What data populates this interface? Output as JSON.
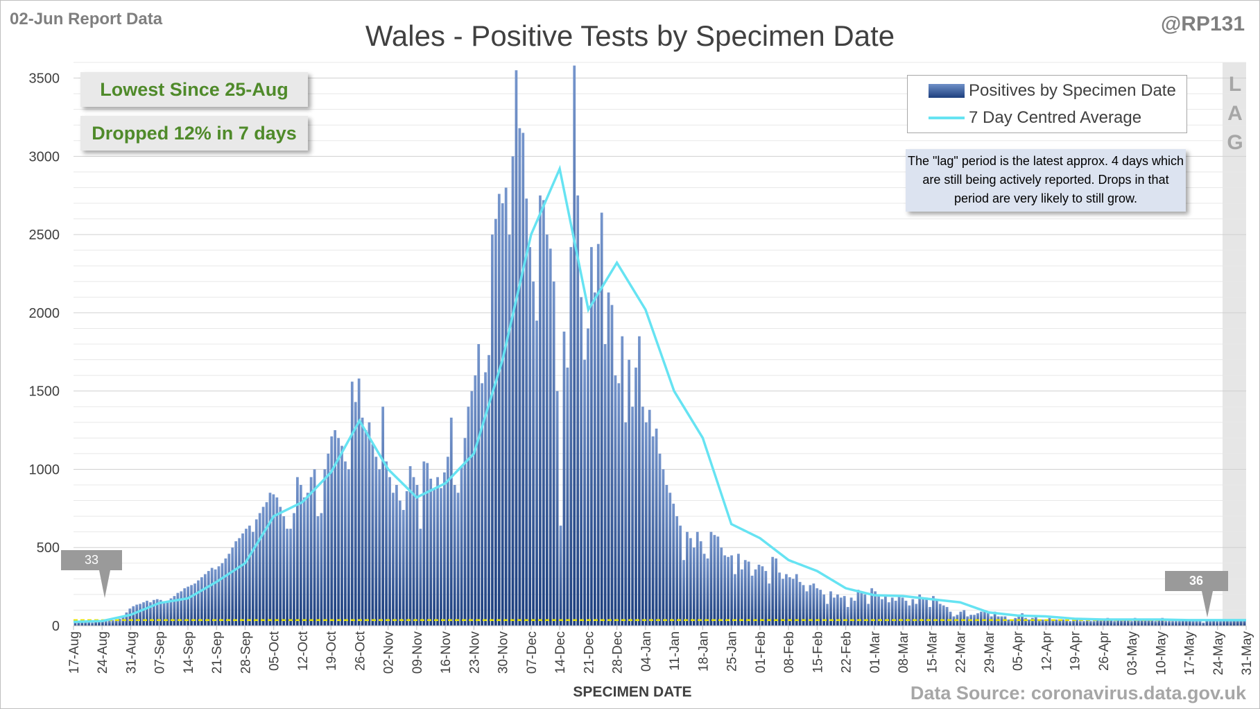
{
  "header": {
    "report_date": "02-Jun Report Data",
    "title": "Wales - Positive Tests by Specimen Date",
    "handle": "@RP131"
  },
  "callouts": {
    "lowest": "Lowest Since 25-Aug",
    "change": "Dropped 12% in 7 days"
  },
  "legend": {
    "bars": "Positives by Specimen Date",
    "line": "7 Day Centred Average"
  },
  "lag_note": "The \"lag\" period is the latest approx. 4 days which are still being actively reported. Drops in that period are very likely to still grow.",
  "lag_letters": [
    "L",
    "A",
    "G"
  ],
  "markers": {
    "first": "33",
    "last": "36"
  },
  "footer": {
    "source": "Data Source: coronavirus.data.gov.uk"
  },
  "colors": {
    "bar": "#2e5597",
    "average_line": "#66e3f2",
    "reference_line": "#e8e400",
    "callout_text": "#4f8a2a"
  },
  "chart_data": {
    "type": "bar",
    "xlabel": "SPECIMEN DATE",
    "ylabel": "",
    "ylim": [
      0,
      3600
    ],
    "yticks": [
      0,
      500,
      1000,
      1500,
      2000,
      2500,
      3000,
      3500
    ],
    "x_tick_labels": [
      "17-Aug",
      "24-Aug",
      "31-Aug",
      "07-Sep",
      "14-Sep",
      "21-Sep",
      "28-Sep",
      "05-Oct",
      "12-Oct",
      "19-Oct",
      "26-Oct",
      "02-Nov",
      "09-Nov",
      "16-Nov",
      "23-Nov",
      "30-Nov",
      "07-Dec",
      "14-Dec",
      "21-Dec",
      "28-Dec",
      "04-Jan",
      "11-Jan",
      "18-Jan",
      "25-Jan",
      "01-Feb",
      "08-Feb",
      "15-Feb",
      "22-Feb",
      "01-Mar",
      "08-Mar",
      "15-Mar",
      "22-Mar",
      "29-Mar",
      "05-Apr",
      "12-Apr",
      "19-Apr",
      "26-Apr",
      "03-May",
      "10-May",
      "17-May",
      "24-May",
      "31-May"
    ],
    "start_date": "17-Aug",
    "end_date": "31-May",
    "series": [
      {
        "name": "Positives by Specimen Date",
        "type": "bar",
        "values": [
          22,
          24,
          28,
          25,
          26,
          20,
          33,
          35,
          38,
          30,
          32,
          35,
          40,
          45,
          60,
          85,
          110,
          125,
          135,
          140,
          150,
          160,
          150,
          165,
          170,
          165,
          155,
          160,
          175,
          190,
          210,
          220,
          240,
          250,
          260,
          270,
          290,
          310,
          330,
          350,
          370,
          360,
          380,
          400,
          430,
          460,
          500,
          540,
          560,
          590,
          620,
          640,
          600,
          680,
          720,
          760,
          790,
          850,
          840,
          820,
          760,
          700,
          620,
          620,
          720,
          950,
          900,
          820,
          850,
          950,
          1000,
          700,
          720,
          1000,
          1100,
          1210,
          1250,
          1200,
          1150,
          1050,
          1000,
          1560,
          1430,
          1580,
          1330,
          1250,
          1300,
          1160,
          1080,
          1000,
          1400,
          1050,
          950,
          850,
          900,
          800,
          740,
          860,
          1020,
          950,
          900,
          620,
          1050,
          1040,
          940,
          880,
          950,
          880,
          980,
          1080,
          1330,
          900,
          850,
          1020,
          1200,
          1400,
          1500,
          1600,
          1800,
          1550,
          1620,
          1730,
          2500,
          2600,
          2760,
          2700,
          2800,
          2500,
          3000,
          3550,
          3180,
          3150,
          2730,
          2420,
          2200,
          1950,
          2750,
          2720,
          2500,
          2410,
          2200,
          1500,
          640,
          1880,
          1650,
          2420,
          3580,
          2750,
          2100,
          1700,
          1900,
          2420,
          2130,
          2440,
          2640,
          1800,
          2130,
          2050,
          1600,
          1550,
          1850,
          1300,
          1700,
          1400,
          1650,
          1850,
          1400,
          1300,
          1380,
          1210,
          1260,
          1100,
          1000,
          900,
          850,
          780,
          700,
          640,
          420,
          600,
          560,
          500,
          600,
          540,
          460,
          430,
          600,
          580,
          570,
          500,
          450,
          440,
          450,
          330,
          460,
          360,
          420,
          410,
          320,
          360,
          390,
          380,
          350,
          270,
          440,
          430,
          340,
          300,
          330,
          310,
          300,
          330,
          280,
          260,
          220,
          260,
          270,
          240,
          230,
          200,
          140,
          220,
          180,
          200,
          180,
          190,
          120,
          180,
          160,
          230,
          210,
          200,
          140,
          240,
          220,
          190,
          170,
          200,
          150,
          180,
          160,
          190,
          180,
          160,
          130,
          170,
          140,
          200,
          170,
          180,
          120,
          190,
          170,
          140,
          130,
          120,
          90,
          60,
          70,
          90,
          100,
          60,
          70,
          70,
          80,
          90,
          90,
          80,
          60,
          90,
          60,
          60,
          60,
          40,
          40,
          50,
          60,
          80,
          50,
          40,
          50,
          60,
          40,
          40,
          40,
          50,
          40,
          40,
          40,
          40,
          40,
          30,
          40,
          40,
          30,
          30,
          40,
          30,
          30,
          40,
          40,
          40,
          50,
          40,
          30,
          40,
          40,
          40,
          40,
          30,
          50,
          40,
          40,
          40,
          40,
          40,
          30,
          40,
          50,
          30,
          30,
          30,
          30,
          30,
          40,
          40,
          40,
          30,
          30,
          30,
          20,
          40,
          30,
          40,
          30,
          30,
          40,
          40,
          30,
          40,
          40,
          40,
          40
        ]
      },
      {
        "name": "7 Day Centred Average",
        "type": "line",
        "points": [
          [
            "17-Aug",
            25
          ],
          [
            "24-Aug",
            30
          ],
          [
            "31-Aug",
            70
          ],
          [
            "07-Sep",
            145
          ],
          [
            "14-Sep",
            175
          ],
          [
            "21-Sep",
            280
          ],
          [
            "28-Sep",
            400
          ],
          [
            "05-Oct",
            700
          ],
          [
            "12-Oct",
            790
          ],
          [
            "19-Oct",
            980
          ],
          [
            "26-Oct",
            1310
          ],
          [
            "02-Nov",
            1000
          ],
          [
            "09-Nov",
            820
          ],
          [
            "16-Nov",
            910
          ],
          [
            "23-Nov",
            1100
          ],
          [
            "30-Nov",
            1700
          ],
          [
            "07-Dec",
            2500
          ],
          [
            "14-Dec",
            2920
          ],
          [
            "21-Dec",
            2020
          ],
          [
            "28-Dec",
            2320
          ],
          [
            "04-Jan",
            2020
          ],
          [
            "11-Jan",
            1500
          ],
          [
            "18-Jan",
            1200
          ],
          [
            "25-Jan",
            650
          ],
          [
            "01-Feb",
            560
          ],
          [
            "08-Feb",
            420
          ],
          [
            "15-Feb",
            350
          ],
          [
            "22-Feb",
            240
          ],
          [
            "01-Mar",
            195
          ],
          [
            "08-Mar",
            190
          ],
          [
            "15-Mar",
            170
          ],
          [
            "22-Mar",
            150
          ],
          [
            "29-Mar",
            85
          ],
          [
            "05-Apr",
            65
          ],
          [
            "12-Apr",
            60
          ],
          [
            "19-Apr",
            45
          ],
          [
            "26-Apr",
            40
          ],
          [
            "03-May",
            40
          ],
          [
            "10-May",
            40
          ],
          [
            "17-May",
            36
          ],
          [
            "24-May",
            36
          ],
          [
            "31-May",
            36
          ]
        ]
      }
    ],
    "reference_line": 36,
    "lag_period_days": 4
  }
}
